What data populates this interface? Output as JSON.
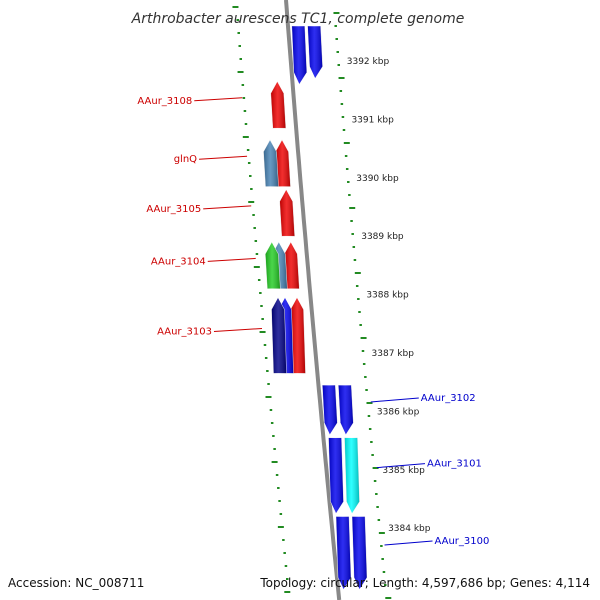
{
  "title": "Arthrobacter aurescens TC1, complete genome",
  "footer": {
    "accession": "Accession: NC_008711",
    "summary": "Topology: circular; Length: 4,597,686 bp; Genes: 4,114"
  },
  "colors": {
    "forward_label": "#cc0000",
    "reverse_label": "#0000cc",
    "tick": "#228b22",
    "backbone": "#888888"
  },
  "chart_data": {
    "type": "genome-map",
    "title": "Arthrobacter aurescens TC1, complete genome",
    "position_unit": "kbp",
    "scale_labels": [
      {
        "kbp": 3392,
        "text": "3392 kbp"
      },
      {
        "kbp": 3391,
        "text": "3391 kbp"
      },
      {
        "kbp": 3390,
        "text": "3390 kbp"
      },
      {
        "kbp": 3389,
        "text": "3389 kbp"
      },
      {
        "kbp": 3388,
        "text": "3388 kbp"
      },
      {
        "kbp": 3387,
        "text": "3387 kbp"
      },
      {
        "kbp": 3386,
        "text": "3386 kbp"
      },
      {
        "kbp": 3385,
        "text": "3385 kbp"
      },
      {
        "kbp": 3384,
        "text": "3384 kbp"
      }
    ],
    "genes": [
      {
        "name": "",
        "strand": "-",
        "track": "outer",
        "start_kbp": 3391.7,
        "end_kbp": 3392.6,
        "color": "#0000ee"
      },
      {
        "name": "",
        "strand": "-",
        "track": "inner",
        "start_kbp": 3391.6,
        "end_kbp": 3392.6,
        "color": "#0000ee"
      },
      {
        "name": "AAur_3108",
        "strand": "+",
        "track": "outer",
        "start_kbp": 3390.85,
        "end_kbp": 3391.65,
        "color": "#ee0000"
      },
      {
        "name": "glnQ",
        "strand": "+",
        "track": "outer",
        "start_kbp": 3389.85,
        "end_kbp": 3390.65,
        "color": "#ee0000"
      },
      {
        "name": "",
        "strand": "+",
        "track": "inner",
        "start_kbp": 3389.85,
        "end_kbp": 3390.65,
        "color": "#4682b4"
      },
      {
        "name": "AAur_3105",
        "strand": "+",
        "track": "outer",
        "start_kbp": 3389.0,
        "end_kbp": 3389.8,
        "color": "#ee0000"
      },
      {
        "name": "AAur_3104",
        "strand": "+",
        "track": "outer",
        "start_kbp": 3388.1,
        "end_kbp": 3388.9,
        "color": "#ee0000"
      },
      {
        "name": "",
        "strand": "+",
        "track": "inner",
        "start_kbp": 3388.1,
        "end_kbp": 3388.9,
        "color": "#4682b4"
      },
      {
        "name": "",
        "strand": "+",
        "track": "inner2",
        "start_kbp": 3388.1,
        "end_kbp": 3388.9,
        "color": "#22cc22"
      },
      {
        "name": "AAur_3103",
        "strand": "+",
        "track": "outer",
        "start_kbp": 3386.65,
        "end_kbp": 3387.95,
        "color": "#ee0000"
      },
      {
        "name": "",
        "strand": "+",
        "track": "inner",
        "start_kbp": 3386.65,
        "end_kbp": 3387.95,
        "color": "#0000ee"
      },
      {
        "name": "",
        "strand": "+",
        "track": "inner2",
        "start_kbp": 3386.65,
        "end_kbp": 3387.95,
        "color": "#000088"
      },
      {
        "name": "AAur_3102",
        "strand": "-",
        "track": "outer",
        "start_kbp": 3385.6,
        "end_kbp": 3386.45,
        "color": "#0000ee"
      },
      {
        "name": "",
        "strand": "-",
        "track": "inner",
        "start_kbp": 3385.6,
        "end_kbp": 3386.45,
        "color": "#0000ee"
      },
      {
        "name": "AAur_3101",
        "strand": "-",
        "track": "outer",
        "start_kbp": 3384.25,
        "end_kbp": 3385.55,
        "color": "#00ffff"
      },
      {
        "name": "",
        "strand": "-",
        "track": "inner",
        "start_kbp": 3384.25,
        "end_kbp": 3385.55,
        "color": "#0000ee"
      },
      {
        "name": "AAur_3100",
        "strand": "-",
        "track": "outer",
        "start_kbp": 3382.95,
        "end_kbp": 3384.2,
        "color": "#0000ee"
      },
      {
        "name": "",
        "strand": "-",
        "track": "inner",
        "start_kbp": 3382.95,
        "end_kbp": 3384.2,
        "color": "#0000ee"
      }
    ]
  }
}
